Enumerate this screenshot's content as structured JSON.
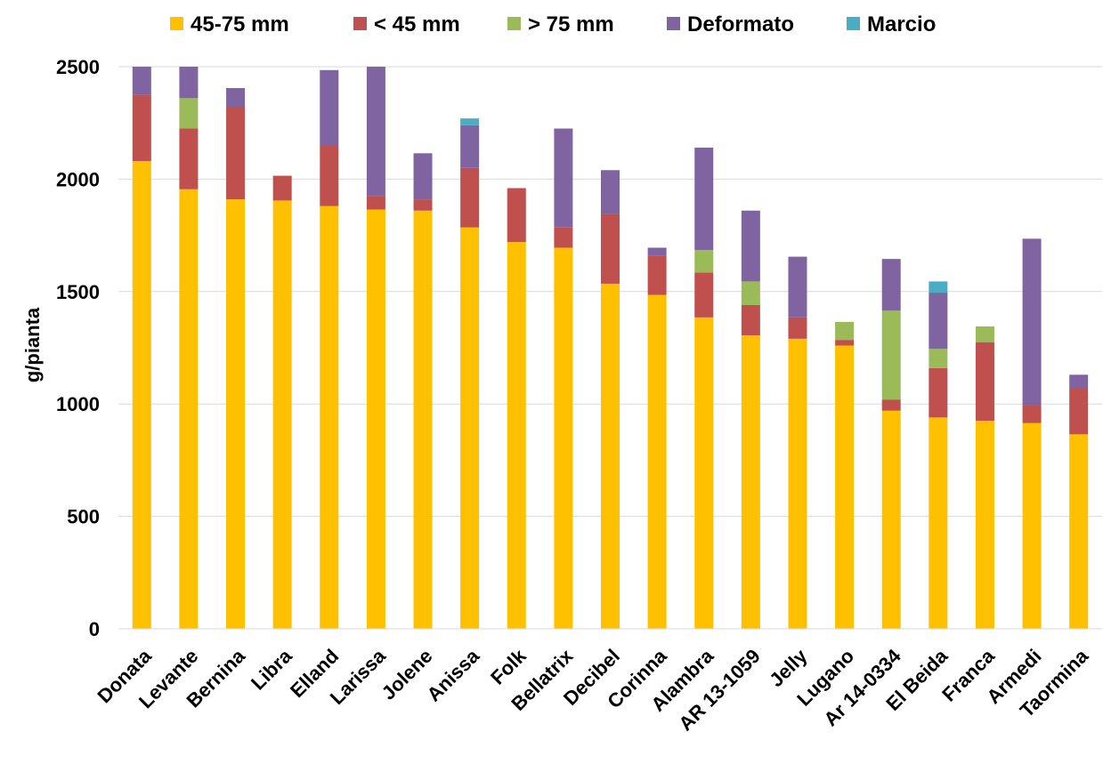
{
  "chart_data": {
    "type": "bar",
    "stacked": true,
    "ylabel": "g/pianta",
    "ylim": [
      0,
      2500
    ],
    "yticks": [
      0,
      500,
      1000,
      1500,
      2000,
      2500
    ],
    "grid": true,
    "legend_position": "top",
    "categories": [
      "Donata",
      "Levante",
      "Bernina",
      "Libra",
      "Elland",
      "Larissa",
      "Jolene",
      "Anissa",
      "Folk",
      "Bellatrix",
      "Decibel",
      "Corinna",
      "Alambra",
      "AR 13-1059",
      "Jelly",
      "Lugano",
      "Ar 14-0334",
      "El Beida",
      "Franca",
      "Armedi",
      "Taormina"
    ],
    "series": [
      {
        "name": "45-75 mm",
        "color": "#FFC000",
        "values": [
          2080,
          1955,
          1910,
          1905,
          1880,
          1865,
          1860,
          1785,
          1720,
          1695,
          1535,
          1485,
          1385,
          1305,
          1290,
          1260,
          970,
          940,
          925,
          915,
          865
        ]
      },
      {
        "name": "< 45 mm",
        "color": "#C0504D",
        "values": [
          295,
          270,
          410,
          110,
          270,
          60,
          50,
          265,
          240,
          90,
          310,
          175,
          200,
          135,
          95,
          25,
          50,
          220,
          350,
          80,
          205
        ]
      },
      {
        "name": "> 75 mm",
        "color": "#9BBB59",
        "values": [
          0,
          135,
          0,
          0,
          0,
          0,
          0,
          0,
          0,
          0,
          0,
          0,
          100,
          105,
          0,
          80,
          395,
          85,
          70,
          0,
          0
        ]
      },
      {
        "name": "Deformato",
        "color": "#8064A2",
        "values": [
          130,
          145,
          85,
          0,
          335,
          580,
          205,
          190,
          0,
          440,
          195,
          35,
          455,
          315,
          270,
          0,
          230,
          250,
          0,
          740,
          60
        ]
      },
      {
        "name": "Marcio",
        "color": "#4BACC6",
        "values": [
          0,
          0,
          0,
          0,
          0,
          0,
          0,
          30,
          0,
          0,
          0,
          0,
          0,
          0,
          0,
          0,
          0,
          50,
          0,
          0,
          0
        ]
      }
    ]
  }
}
